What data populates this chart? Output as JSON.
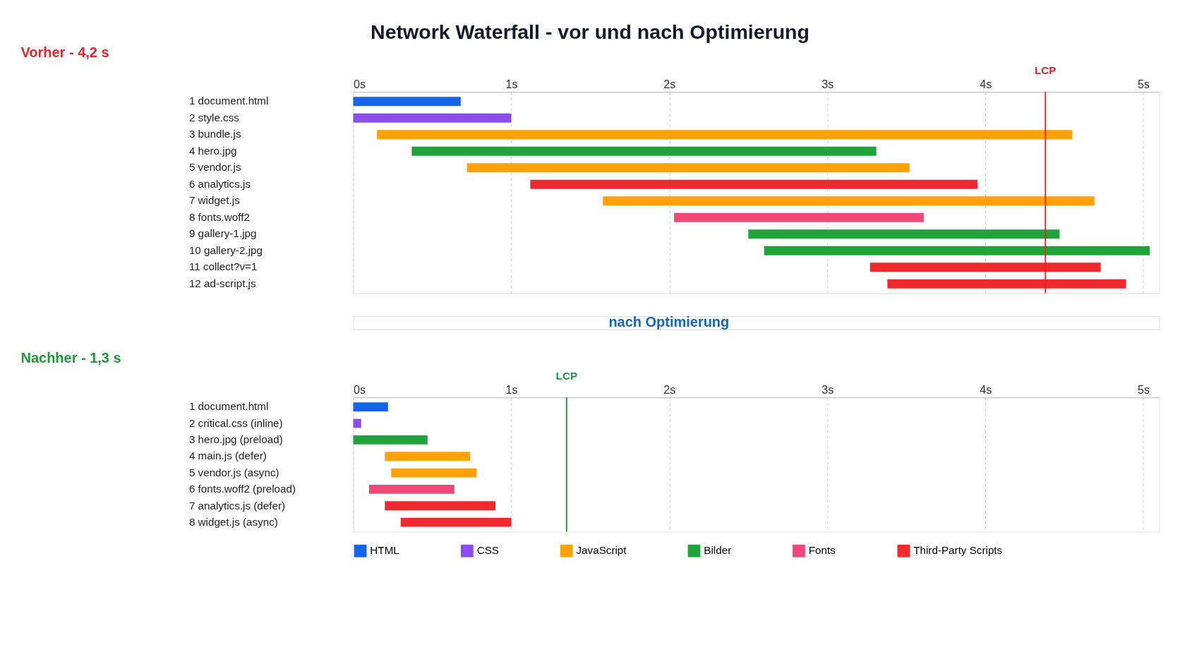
{
  "chart_data": [
    {
      "type": "bar",
      "orientation": "horizontal",
      "title": "Network Waterfall - vor und nach Optimierung",
      "subtitle": "Vorher - 4,2 s",
      "categories": [
        "1 document.html",
        "2 style.css",
        "3 bundle.js",
        "4 hero.jpg",
        "5 vendor.js",
        "6 analytics.js",
        "7 widget.js",
        "8 fonts.woff2",
        "9 gallery-1.jpg",
        "10 gallery-2.jpg",
        "11 collect?v=1",
        "12 ad-script.js"
      ],
      "series": [
        {
          "color": "#1565e8",
          "values": [
            0.68,
            null,
            null,
            null,
            null,
            null,
            null,
            null,
            null,
            null,
            null,
            null
          ],
          "base": [
            0,
            null,
            null,
            null,
            null,
            null,
            null,
            null,
            null,
            null,
            null,
            null
          ]
        },
        {
          "color": "#8b4cf0",
          "values": [
            null,
            1.0,
            null,
            null,
            null,
            null,
            null,
            null,
            null,
            null,
            null,
            null
          ],
          "base": [
            null,
            0,
            null,
            null,
            null,
            null,
            null,
            null,
            null,
            null,
            null,
            null
          ]
        },
        {
          "color": "#ffa10a",
          "values": [
            null,
            null,
            4.4,
            null,
            2.8,
            null,
            3.11,
            null,
            null,
            null,
            null,
            null
          ],
          "base": [
            null,
            null,
            0.15,
            null,
            0.72,
            null,
            1.58,
            null,
            null,
            null,
            null,
            null
          ]
        },
        {
          "color": "#1fa33a",
          "values": [
            null,
            null,
            null,
            2.94,
            null,
            null,
            null,
            null,
            1.97,
            2.44,
            null,
            null
          ],
          "base": [
            null,
            null,
            null,
            0.37,
            null,
            null,
            null,
            null,
            2.5,
            2.6,
            null,
            null
          ]
        },
        {
          "color": "#f0487a",
          "values": [
            null,
            null,
            null,
            null,
            null,
            null,
            null,
            1.58,
            null,
            null,
            null,
            null
          ],
          "base": [
            null,
            null,
            null,
            null,
            null,
            null,
            null,
            2.03,
            null,
            null,
            null,
            null
          ]
        },
        {
          "color": "#ef2a2f",
          "values": [
            null,
            null,
            null,
            null,
            null,
            2.83,
            null,
            null,
            null,
            null,
            1.46,
            1.51
          ],
          "base": [
            null,
            null,
            null,
            null,
            null,
            1.12,
            null,
            null,
            null,
            null,
            3.27,
            3.38
          ]
        }
      ],
      "xlim": [
        0,
        5.1
      ],
      "xticks": [
        {
          "value": 0,
          "label": "0s"
        },
        {
          "value": 1,
          "label": "1s"
        },
        {
          "value": 2,
          "label": "2s"
        },
        {
          "value": 3,
          "label": "3s"
        },
        {
          "value": 4,
          "label": "4s"
        },
        {
          "value": 5,
          "label": "5s"
        }
      ],
      "ref_lines": [
        {
          "axis": "x",
          "value": 4.38,
          "label": "LCP",
          "color": "#e8232a"
        }
      ],
      "grid": "x",
      "legend": false
    },
    {
      "type": "bar",
      "orientation": "horizontal",
      "title": "Nachher - 1,3 s",
      "annotations": [
        "nach Optimierung"
      ],
      "categories": [
        "1 document.html",
        "2 critical.css (inline)",
        "3 hero.jpg (preload)",
        "4 main.js (defer)",
        "5 vendor.js (async)",
        "6 fonts.woff2 (preload)",
        "7 analytics.js (defer)",
        "8 widget.js (async)"
      ],
      "series": [
        {
          "name": "HTML",
          "color": "#1565e8",
          "values": [
            0.22,
            null,
            null,
            null,
            null,
            null,
            null,
            null
          ],
          "base": [
            0,
            null,
            null,
            null,
            null,
            null,
            null,
            null
          ]
        },
        {
          "name": "CSS",
          "color": "#8b4cf0",
          "values": [
            null,
            0.05,
            null,
            null,
            null,
            null,
            null,
            null
          ],
          "base": [
            null,
            0,
            null,
            null,
            null,
            null,
            null,
            null
          ]
        },
        {
          "name": "JavaScript",
          "color": "#ffa10a",
          "values": [
            null,
            null,
            null,
            0.54,
            0.54,
            null,
            null,
            null
          ],
          "base": [
            null,
            null,
            null,
            0.2,
            0.24,
            null,
            null,
            null
          ]
        },
        {
          "name": "Bilder",
          "color": "#1fa33a",
          "values": [
            null,
            null,
            0.47,
            null,
            null,
            null,
            null,
            null
          ],
          "base": [
            null,
            null,
            0,
            null,
            null,
            null,
            null,
            null
          ]
        },
        {
          "name": "Fonts",
          "color": "#f0487a",
          "values": [
            null,
            null,
            null,
            null,
            null,
            0.54,
            null,
            null
          ],
          "base": [
            null,
            null,
            null,
            null,
            null,
            0.1,
            null,
            null
          ]
        },
        {
          "name": "Third-Party Scripts",
          "color": "#ef2a2f",
          "values": [
            null,
            null,
            null,
            null,
            null,
            null,
            0.7,
            0.7
          ],
          "base": [
            null,
            null,
            null,
            null,
            null,
            null,
            0.2,
            0.3
          ]
        }
      ],
      "xlim": [
        0,
        5.1
      ],
      "xticks": [
        {
          "value": 0,
          "label": "0s"
        },
        {
          "value": 1,
          "label": "1s"
        },
        {
          "value": 2,
          "label": "2s"
        },
        {
          "value": 3,
          "label": "3s"
        },
        {
          "value": 4,
          "label": "4s"
        },
        {
          "value": 5,
          "label": "5s"
        }
      ],
      "ref_lines": [
        {
          "axis": "x",
          "value": 1.35,
          "label": "LCP",
          "color": "#1f9a3a"
        }
      ],
      "grid": "x",
      "legend": "bottom"
    }
  ]
}
